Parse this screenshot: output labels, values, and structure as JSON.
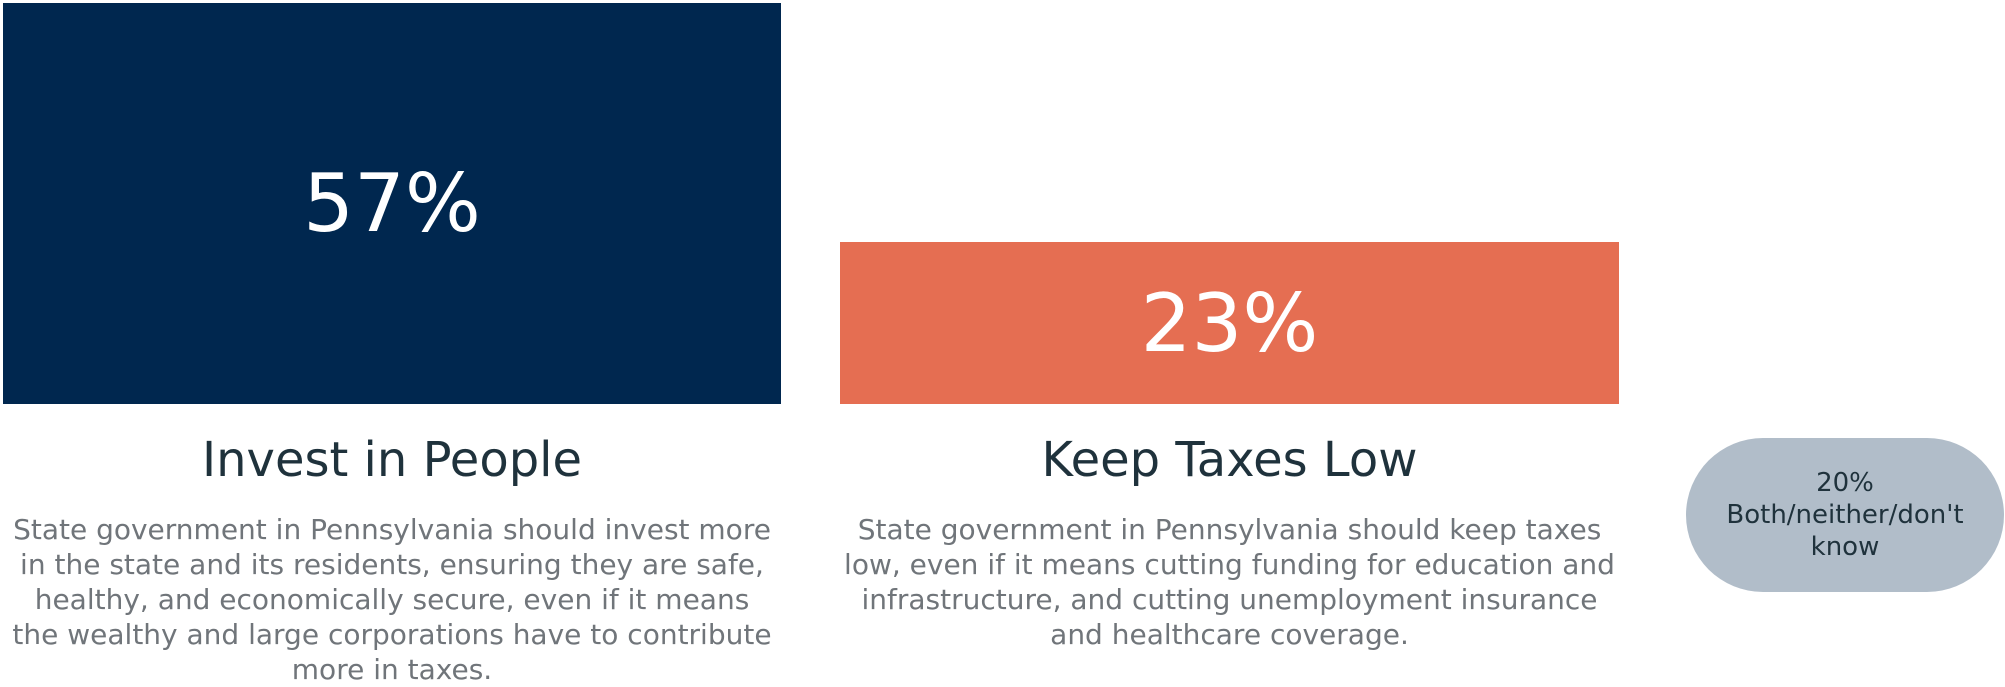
{
  "chart_data": {
    "type": "bar",
    "categories": [
      "Invest in People",
      "Keep Taxes Low"
    ],
    "values": [
      57,
      23
    ],
    "value_labels": [
      "57%",
      "23%"
    ],
    "descriptions": [
      "State government in Pennsylvania should invest more in the state and its residents, ensuring they are safe, healthy, and economically secure, even if it means the wealthy and large corporations have to contribute more in taxes.",
      "State government in Pennsylvania should keep taxes low, even if it means cutting funding for education and infrastructure, and cutting unemployment insurance and healthcare coverage."
    ],
    "colors": [
      "#00274f",
      "#e56e52"
    ],
    "remainder": {
      "value": 20,
      "value_label": "20%",
      "label": "Both/neither/don't know",
      "color": "#b1bdc9"
    }
  }
}
